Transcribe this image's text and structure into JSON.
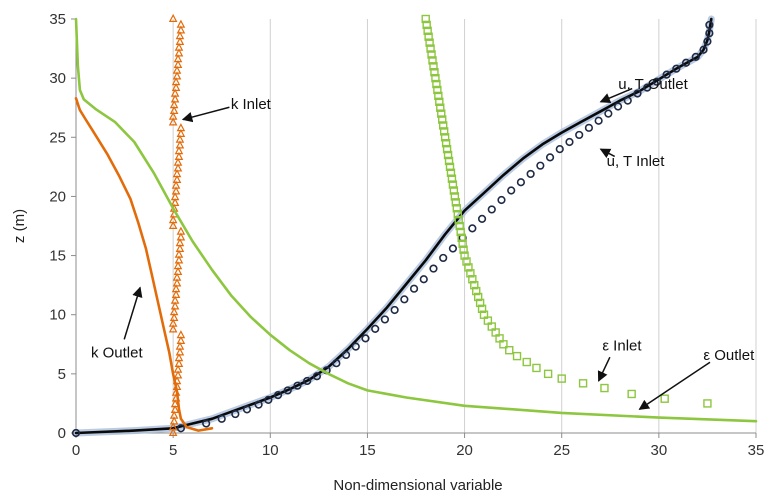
{
  "chart_data": {
    "type": "line",
    "xlabel": "Non-dimensional variable",
    "ylabel": "z (m)",
    "xlim": [
      0,
      35
    ],
    "ylim": [
      0,
      35
    ],
    "xticks": [
      "0",
      "5",
      "10",
      "15",
      "20",
      "25",
      "30",
      "35"
    ],
    "yticks": [
      "0",
      "5",
      "10",
      "15",
      "20",
      "25",
      "30",
      "35"
    ],
    "grid": "vertical",
    "legend": "none",
    "colors": {
      "orange": "#E36C0A",
      "green": "#8DC63F",
      "black": "#0a0a0a",
      "navy": "#1F2A44",
      "blue_shadow": "#A9BEDC"
    },
    "series": [
      {
        "name": "u, T Outlet",
        "style": "line",
        "color": "#0a0a0a",
        "points": [
          [
            0,
            0
          ],
          [
            3,
            0.2
          ],
          [
            5,
            0.4
          ],
          [
            6,
            0.8
          ],
          [
            7,
            1.2
          ],
          [
            8,
            1.8
          ],
          [
            9,
            2.4
          ],
          [
            10,
            3.0
          ],
          [
            11,
            3.7
          ],
          [
            12,
            4.5
          ],
          [
            13,
            5.6
          ],
          [
            14,
            7.1
          ],
          [
            15,
            8.8
          ],
          [
            16,
            10.6
          ],
          [
            17,
            12.6
          ],
          [
            18,
            14.6
          ],
          [
            19,
            16.8
          ],
          [
            20,
            18.8
          ],
          [
            21,
            20.3
          ],
          [
            22,
            21.8
          ],
          [
            23,
            23.2
          ],
          [
            24,
            24.4
          ],
          [
            25,
            25.4
          ],
          [
            26,
            26.3
          ],
          [
            27,
            27.2
          ],
          [
            28,
            28.1
          ],
          [
            29,
            28.9
          ],
          [
            30,
            29.9
          ],
          [
            31,
            30.9
          ],
          [
            32,
            31.8
          ],
          [
            32.3,
            32.4
          ],
          [
            32.5,
            33.2
          ],
          [
            32.6,
            34
          ],
          [
            32.7,
            35
          ]
        ]
      },
      {
        "name": "u, T Inlet",
        "style": "circle",
        "color": "#1F2A44",
        "points": [
          [
            0,
            0
          ],
          [
            5.4,
            0.4
          ],
          [
            6.7,
            0.8
          ],
          [
            7.5,
            1.2
          ],
          [
            8.2,
            1.6
          ],
          [
            8.8,
            2.0
          ],
          [
            9.4,
            2.4
          ],
          [
            9.9,
            2.8
          ],
          [
            10.4,
            3.2
          ],
          [
            10.9,
            3.6
          ],
          [
            11.4,
            4.0
          ],
          [
            11.9,
            4.4
          ],
          [
            12.4,
            4.8
          ],
          [
            12.9,
            5.3
          ],
          [
            13.4,
            5.9
          ],
          [
            13.9,
            6.6
          ],
          [
            14.4,
            7.3
          ],
          [
            14.9,
            8.0
          ],
          [
            15.4,
            8.8
          ],
          [
            15.9,
            9.6
          ],
          [
            16.4,
            10.4
          ],
          [
            16.9,
            11.3
          ],
          [
            17.4,
            12.2
          ],
          [
            17.9,
            13.0
          ],
          [
            18.4,
            13.9
          ],
          [
            18.9,
            14.8
          ],
          [
            19.4,
            15.6
          ],
          [
            19.9,
            16.5
          ],
          [
            20.4,
            17.3
          ],
          [
            20.9,
            18.1
          ],
          [
            21.4,
            18.9
          ],
          [
            21.9,
            19.7
          ],
          [
            22.4,
            20.5
          ],
          [
            22.9,
            21.2
          ],
          [
            23.4,
            21.9
          ],
          [
            23.9,
            22.6
          ],
          [
            24.4,
            23.3
          ],
          [
            24.9,
            24.0
          ],
          [
            25.4,
            24.6
          ],
          [
            25.9,
            25.2
          ],
          [
            26.4,
            25.8
          ],
          [
            26.9,
            26.4
          ],
          [
            27.4,
            27.0
          ],
          [
            27.9,
            27.6
          ],
          [
            28.4,
            28.1
          ],
          [
            28.9,
            28.7
          ],
          [
            29.4,
            29.2
          ],
          [
            29.9,
            29.7
          ],
          [
            30.4,
            30.3
          ],
          [
            30.9,
            30.8
          ],
          [
            31.4,
            31.3
          ],
          [
            31.9,
            31.8
          ],
          [
            32.3,
            32.4
          ],
          [
            32.5,
            33.1
          ],
          [
            32.6,
            33.8
          ],
          [
            32.6,
            34.5
          ]
        ]
      },
      {
        "name": "k Outlet",
        "style": "line",
        "color": "#E36C0A",
        "points": [
          [
            0,
            28.3
          ],
          [
            0.2,
            27.3
          ],
          [
            0.5,
            26.5
          ],
          [
            1.0,
            25.2
          ],
          [
            1.6,
            23.6
          ],
          [
            2.2,
            21.8
          ],
          [
            2.8,
            19.8
          ],
          [
            3.2,
            17.8
          ],
          [
            3.6,
            15.6
          ],
          [
            3.9,
            13.4
          ],
          [
            4.2,
            11.2
          ],
          [
            4.5,
            9.0
          ],
          [
            4.8,
            6.8
          ],
          [
            5.0,
            5.0
          ],
          [
            5.2,
            3.5
          ],
          [
            5.3,
            2.0
          ],
          [
            5.4,
            1.2
          ],
          [
            5.7,
            0.5
          ],
          [
            6.3,
            0.2
          ],
          [
            7.0,
            0.4
          ]
        ]
      },
      {
        "name": "k Inlet",
        "style": "triangle",
        "color": "#E36C0A",
        "x_values": [
          5.0,
          5.0,
          5.05,
          5.05,
          5.1,
          5.1,
          5.15,
          5.15,
          5.2,
          5.2,
          5.25,
          5.25,
          5.3,
          5.3,
          5.35,
          5.35,
          5.4,
          5.4
        ],
        "z_from": 0,
        "z_to": 35
      },
      {
        "name": "ε Outlet",
        "style": "line",
        "color": "#8DC63F",
        "points": [
          [
            0,
            35
          ],
          [
            0.1,
            31
          ],
          [
            0.2,
            29
          ],
          [
            0.4,
            28.2
          ],
          [
            1.0,
            27.4
          ],
          [
            2.0,
            26.3
          ],
          [
            3.0,
            24.6
          ],
          [
            4.0,
            22.0
          ],
          [
            5.0,
            19.0
          ],
          [
            6.0,
            16.2
          ],
          [
            7.0,
            13.8
          ],
          [
            8.0,
            11.6
          ],
          [
            9.0,
            9.8
          ],
          [
            10.0,
            8.3
          ],
          [
            11.0,
            7.0
          ],
          [
            12.0,
            5.9
          ],
          [
            13.0,
            5.0
          ],
          [
            14.0,
            4.2
          ],
          [
            15.0,
            3.6
          ],
          [
            17.0,
            3.0
          ],
          [
            20.0,
            2.3
          ],
          [
            25.0,
            1.7
          ],
          [
            30.0,
            1.3
          ],
          [
            35.0,
            1.0
          ]
        ]
      },
      {
        "name": "ε Inlet",
        "style": "square",
        "color": "#8DC63F",
        "points": [
          [
            18.0,
            35
          ],
          [
            18.05,
            34.5
          ],
          [
            18.1,
            34
          ],
          [
            18.15,
            33.5
          ],
          [
            18.2,
            33
          ],
          [
            18.25,
            32.5
          ],
          [
            18.3,
            32
          ],
          [
            18.35,
            31.5
          ],
          [
            18.4,
            31
          ],
          [
            18.45,
            30.5
          ],
          [
            18.5,
            30
          ],
          [
            18.55,
            29.5
          ],
          [
            18.6,
            29
          ],
          [
            18.65,
            28.5
          ],
          [
            18.7,
            28
          ],
          [
            18.75,
            27.5
          ],
          [
            18.8,
            27
          ],
          [
            18.85,
            26.5
          ],
          [
            18.9,
            26
          ],
          [
            18.95,
            25.5
          ],
          [
            19.0,
            25
          ],
          [
            19.05,
            24.5
          ],
          [
            19.1,
            24
          ],
          [
            19.15,
            23.5
          ],
          [
            19.2,
            23
          ],
          [
            19.25,
            22.5
          ],
          [
            19.3,
            22
          ],
          [
            19.35,
            21.5
          ],
          [
            19.4,
            21
          ],
          [
            19.45,
            20.5
          ],
          [
            19.5,
            20
          ],
          [
            19.55,
            19.5
          ],
          [
            19.6,
            19
          ],
          [
            19.65,
            18.5
          ],
          [
            19.7,
            18
          ],
          [
            19.75,
            17.5
          ],
          [
            19.8,
            17
          ],
          [
            19.85,
            16.5
          ],
          [
            19.9,
            16
          ],
          [
            19.95,
            15.5
          ],
          [
            20.0,
            15
          ],
          [
            20.1,
            14.5
          ],
          [
            20.2,
            14
          ],
          [
            20.3,
            13.5
          ],
          [
            20.4,
            13
          ],
          [
            20.5,
            12.5
          ],
          [
            20.6,
            12
          ],
          [
            20.7,
            11.5
          ],
          [
            20.8,
            11
          ],
          [
            20.9,
            10.5
          ],
          [
            21.0,
            10
          ],
          [
            21.2,
            9.5
          ],
          [
            21.4,
            9
          ],
          [
            21.6,
            8.5
          ],
          [
            21.8,
            8
          ],
          [
            22.0,
            7.5
          ],
          [
            22.3,
            7
          ],
          [
            22.7,
            6.5
          ],
          [
            23.2,
            6
          ],
          [
            23.7,
            5.5
          ],
          [
            24.3,
            5
          ],
          [
            25.0,
            4.6
          ],
          [
            26.1,
            4.2
          ],
          [
            27.2,
            3.8
          ],
          [
            28.6,
            3.3
          ],
          [
            30.3,
            2.9
          ],
          [
            32.5,
            2.5
          ]
        ]
      }
    ],
    "annotations": [
      {
        "text": "k Inlet",
        "x": 9.0,
        "y": 27.8,
        "arrow_to": [
          5.5,
          26.5
        ]
      },
      {
        "text": "u, T Outlet",
        "x": 29.7,
        "y": 29.5,
        "arrow_to": [
          27.0,
          28.0
        ]
      },
      {
        "text": "u, T Inlet",
        "x": 28.8,
        "y": 23.0,
        "arrow_to": [
          27.0,
          24.0
        ]
      },
      {
        "text": "k Outlet",
        "x": 2.1,
        "y": 6.8,
        "arrow_to": [
          3.3,
          12.3
        ]
      },
      {
        "text": "ε Inlet",
        "x": 28.1,
        "y": 7.4,
        "arrow_to": [
          26.9,
          4.4
        ]
      },
      {
        "text": "ε Outlet",
        "x": 33.6,
        "y": 6.6,
        "arrow_to": [
          29.0,
          2.0
        ]
      }
    ]
  }
}
